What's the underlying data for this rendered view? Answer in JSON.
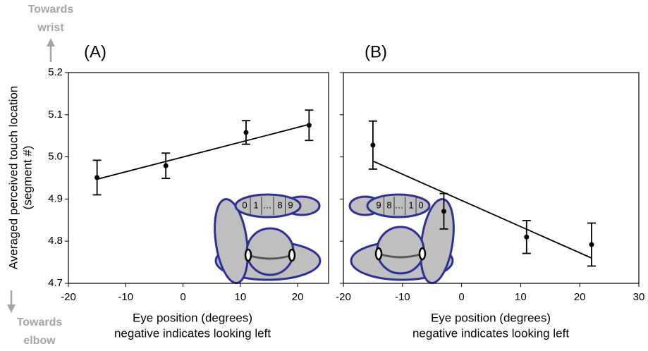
{
  "chart_data": [
    {
      "type": "scatter",
      "title": "(A)",
      "ylabel": [
        "Averaged perceived touch location",
        "(segment #)"
      ],
      "xlabel": [
        "Eye position (degrees)",
        "negative indicates looking left"
      ],
      "annotations": [
        "Towards",
        "wrist",
        "Towards",
        "elbow"
      ],
      "inset_labels": [
        "0",
        "1",
        "…",
        "8",
        "9"
      ],
      "x": [
        -15,
        -3,
        11,
        22
      ],
      "series": [
        {
          "color": "#000000",
          "values": [
            4.951,
            4.979,
            5.058,
            5.075
          ],
          "errors": [
            0.041,
            0.03,
            0.028,
            0.036
          ]
        }
      ],
      "fit": {
        "x": [
          -15,
          22
        ],
        "values": [
          4.947,
          5.077
        ]
      },
      "xlim": [
        -20,
        25.4
      ],
      "xticks": [
        -20,
        -10,
        0,
        10,
        20
      ],
      "ylim": [
        4.7,
        5.2
      ],
      "yticks": [
        4.7,
        4.8,
        4.9,
        {
          "value": 5,
          "label": "5.0"
        },
        5.1,
        5.2
      ],
      "ytick_labels": true
    },
    {
      "type": "scatter",
      "title": "(B)",
      "xlabel": [
        "Eye position (degrees)",
        "negative indicates looking left"
      ],
      "inset_labels": [
        "9",
        "8",
        "…",
        "1",
        "0"
      ],
      "x": [
        -15,
        -3,
        11,
        22
      ],
      "series": [
        {
          "color": "#000000",
          "values": [
            5.028,
            4.871,
            4.81,
            4.792
          ],
          "errors": [
            0.057,
            0.042,
            0.039,
            0.051
          ]
        }
      ],
      "fit": {
        "x": [
          -15,
          22
        ],
        "values": [
          4.99,
          4.76
        ]
      },
      "xlim": [
        -20,
        30
      ],
      "xticks": [
        -20,
        -10,
        0,
        10,
        20,
        30
      ],
      "ylim": [
        4.7,
        5.2
      ],
      "yticks": [
        4.7,
        4.8,
        4.9,
        5,
        5.1,
        5.2
      ],
      "ytick_labels": false
    }
  ]
}
